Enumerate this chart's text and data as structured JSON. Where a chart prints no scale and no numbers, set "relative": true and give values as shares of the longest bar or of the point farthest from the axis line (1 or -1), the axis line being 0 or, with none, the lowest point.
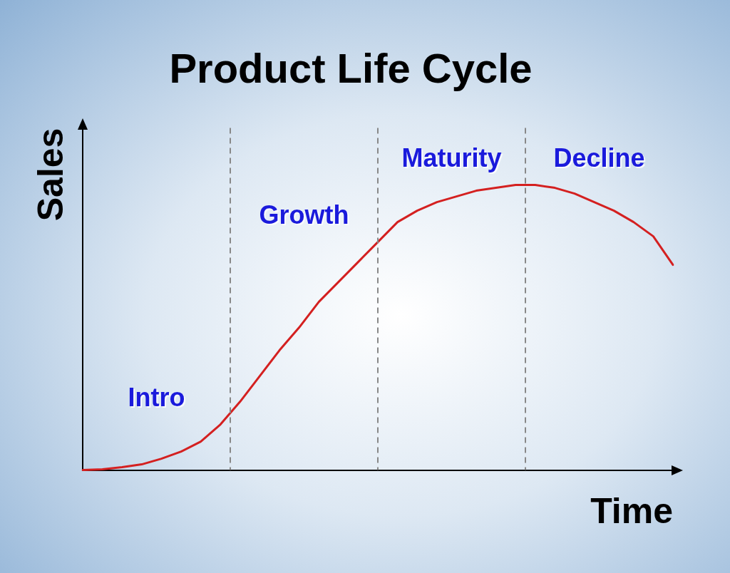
{
  "chart_data": {
    "type": "line",
    "title": "Product Life Cycle",
    "xlabel": "Time",
    "ylabel": "Sales",
    "relative": true,
    "grid": false,
    "legend": false,
    "marker": "none",
    "line_style": "solid",
    "categories": [
      null,
      null,
      null,
      null,
      null,
      null,
      null,
      null,
      null,
      null,
      null,
      null,
      null,
      null,
      null,
      null,
      null,
      null,
      null,
      null,
      null,
      null,
      null,
      null,
      null,
      null,
      null,
      null,
      null,
      null,
      null
    ],
    "series": [
      {
        "color": "#d42020",
        "values": [
          0,
          0.003,
          0.01,
          0.02,
          0.04,
          0.065,
          0.1,
          0.16,
          0.24,
          0.33,
          0.42,
          0.5,
          0.59,
          0.66,
          0.73,
          0.8,
          0.87,
          0.91,
          0.94,
          0.96,
          0.98,
          0.99,
          1,
          1,
          0.99,
          0.97,
          0.94,
          0.91,
          0.87,
          0.82,
          0.72
        ]
      }
    ],
    "annotations": [
      "Intro",
      "Growth",
      "Maturity",
      "Decline"
    ]
  }
}
